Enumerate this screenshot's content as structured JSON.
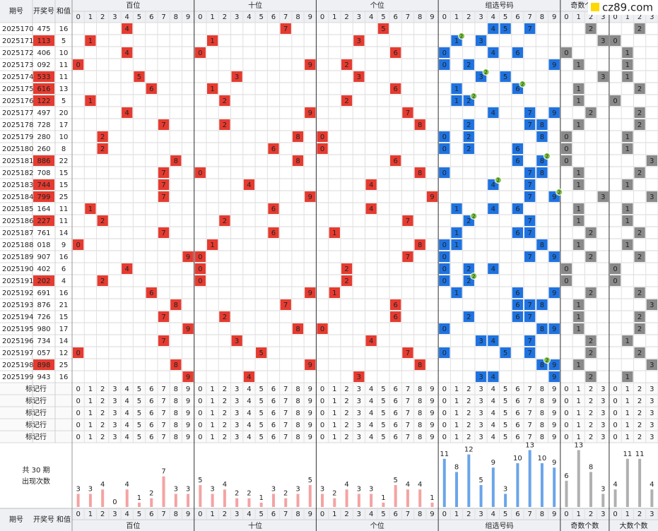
{
  "header": {
    "issue": "期号",
    "number": "开奖号",
    "sum": "和值",
    "groups": [
      "百位",
      "十位",
      "个位",
      "组选号码",
      "奇数个数",
      "大数个数"
    ],
    "digits10": [
      0,
      1,
      2,
      3,
      4,
      5,
      6,
      7,
      8,
      9
    ],
    "digits4": [
      0,
      1,
      2,
      3
    ]
  },
  "logo": "cz89.com",
  "rows": [
    {
      "issue": "2025170",
      "number": "475",
      "sum": 16,
      "digits": [
        4,
        7,
        5
      ],
      "group": [
        4,
        5,
        7
      ],
      "odd": 2,
      "big": 2
    },
    {
      "issue": "2025171",
      "number": "113",
      "sum": 5,
      "digits": [
        1,
        1,
        3
      ],
      "group": [
        1,
        3
      ],
      "pair": {
        "digit": 1,
        "count": 2
      },
      "odd": 3,
      "big": 0
    },
    {
      "issue": "2025172",
      "number": "406",
      "sum": 10,
      "digits": [
        4,
        0,
        6
      ],
      "group": [
        0,
        4,
        6
      ],
      "odd": 0,
      "big": 1
    },
    {
      "issue": "2025173",
      "number": "092",
      "sum": 11,
      "digits": [
        0,
        9,
        2
      ],
      "group": [
        0,
        2,
        9
      ],
      "odd": 1,
      "big": 1
    },
    {
      "issue": "2025174",
      "number": "533",
      "sum": 11,
      "digits": [
        5,
        3,
        3
      ],
      "group": [
        3,
        5
      ],
      "pair": {
        "digit": 3,
        "count": 2
      },
      "odd": 3,
      "big": 1
    },
    {
      "issue": "2025175",
      "number": "616",
      "sum": 13,
      "digits": [
        6,
        1,
        6
      ],
      "group": [
        1,
        6
      ],
      "pair": {
        "digit": 6,
        "count": 2
      },
      "odd": 1,
      "big": 2
    },
    {
      "issue": "2025176",
      "number": "122",
      "sum": 5,
      "digits": [
        1,
        2,
        2
      ],
      "group": [
        1,
        2
      ],
      "pair": {
        "digit": 2,
        "count": 2
      },
      "odd": 1,
      "big": 0
    },
    {
      "issue": "2025177",
      "number": "497",
      "sum": 20,
      "digits": [
        4,
        9,
        7
      ],
      "group": [
        4,
        7,
        9
      ],
      "odd": 2,
      "big": 2
    },
    {
      "issue": "2025178",
      "number": "728",
      "sum": 17,
      "digits": [
        7,
        2,
        8
      ],
      "group": [
        2,
        7,
        8
      ],
      "odd": 1,
      "big": 2
    },
    {
      "issue": "2025179",
      "number": "280",
      "sum": 10,
      "digits": [
        2,
        8,
        0
      ],
      "group": [
        0,
        2,
        8
      ],
      "odd": 0,
      "big": 1
    },
    {
      "issue": "2025180",
      "number": "260",
      "sum": 8,
      "digits": [
        2,
        6,
        0
      ],
      "group": [
        0,
        2,
        6
      ],
      "odd": 0,
      "big": 1
    },
    {
      "issue": "2025181",
      "number": "886",
      "sum": 22,
      "digits": [
        8,
        8,
        6
      ],
      "group": [
        6,
        8
      ],
      "pair": {
        "digit": 8,
        "count": 2
      },
      "odd": 0,
      "big": 3
    },
    {
      "issue": "2025182",
      "number": "708",
      "sum": 15,
      "digits": [
        7,
        0,
        8
      ],
      "group": [
        0,
        7,
        8
      ],
      "odd": 1,
      "big": 2
    },
    {
      "issue": "2025183",
      "number": "744",
      "sum": 15,
      "digits": [
        7,
        4,
        4
      ],
      "group": [
        4,
        7
      ],
      "pair": {
        "digit": 4,
        "count": 2
      },
      "odd": 1,
      "big": 1
    },
    {
      "issue": "2025184",
      "number": "799",
      "sum": 25,
      "digits": [
        7,
        9,
        9
      ],
      "group": [
        7,
        9
      ],
      "pair": {
        "digit": 9,
        "count": 2
      },
      "odd": 3,
      "big": 3
    },
    {
      "issue": "2025185",
      "number": "164",
      "sum": 11,
      "digits": [
        1,
        6,
        4
      ],
      "group": [
        1,
        4,
        6
      ],
      "odd": 1,
      "big": 1
    },
    {
      "issue": "2025186",
      "number": "227",
      "sum": 11,
      "digits": [
        2,
        2,
        7
      ],
      "group": [
        2,
        7
      ],
      "pair": {
        "digit": 2,
        "count": 2
      },
      "odd": 1,
      "big": 1
    },
    {
      "issue": "2025187",
      "number": "761",
      "sum": 14,
      "digits": [
        7,
        6,
        1
      ],
      "group": [
        1,
        6,
        7
      ],
      "odd": 2,
      "big": 2
    },
    {
      "issue": "2025188",
      "number": "018",
      "sum": 9,
      "digits": [
        0,
        1,
        8
      ],
      "group": [
        0,
        1,
        8
      ],
      "odd": 1,
      "big": 1
    },
    {
      "issue": "2025189",
      "number": "907",
      "sum": 16,
      "digits": [
        9,
        0,
        7
      ],
      "group": [
        0,
        7,
        9
      ],
      "odd": 2,
      "big": 2
    },
    {
      "issue": "2025190",
      "number": "402",
      "sum": 6,
      "digits": [
        4,
        0,
        2
      ],
      "group": [
        0,
        2,
        4
      ],
      "odd": 0,
      "big": 0
    },
    {
      "issue": "2025191",
      "number": "202",
      "sum": 4,
      "digits": [
        2,
        0,
        2
      ],
      "group": [
        0,
        2
      ],
      "pair": {
        "digit": 2,
        "count": 2
      },
      "odd": 0,
      "big": 0
    },
    {
      "issue": "2025192",
      "number": "691",
      "sum": 16,
      "digits": [
        6,
        9,
        1
      ],
      "group": [
        1,
        6,
        9
      ],
      "odd": 2,
      "big": 2
    },
    {
      "issue": "2025193",
      "number": "876",
      "sum": 21,
      "digits": [
        8,
        7,
        6
      ],
      "group": [
        6,
        7,
        8
      ],
      "odd": 1,
      "big": 3
    },
    {
      "issue": "2025194",
      "number": "726",
      "sum": 15,
      "digits": [
        7,
        2,
        6
      ],
      "group": [
        2,
        6,
        7
      ],
      "odd": 1,
      "big": 2
    },
    {
      "issue": "2025195",
      "number": "980",
      "sum": 17,
      "digits": [
        9,
        8,
        0
      ],
      "group": [
        0,
        8,
        9
      ],
      "odd": 1,
      "big": 2
    },
    {
      "issue": "2025196",
      "number": "734",
      "sum": 14,
      "digits": [
        7,
        3,
        4
      ],
      "group": [
        3,
        4,
        7
      ],
      "odd": 2,
      "big": 1
    },
    {
      "issue": "2025197",
      "number": "057",
      "sum": 12,
      "digits": [
        0,
        5,
        7
      ],
      "group": [
        0,
        5,
        7
      ],
      "odd": 2,
      "big": 2
    },
    {
      "issue": "2025198",
      "number": "898",
      "sum": 25,
      "digits": [
        8,
        9,
        8
      ],
      "group": [
        8,
        9
      ],
      "pair": {
        "digit": 8,
        "count": 2
      },
      "odd": 1,
      "big": 3
    },
    {
      "issue": "2025199",
      "number": "943",
      "sum": 16,
      "digits": [
        9,
        4,
        3
      ],
      "group": [
        3,
        4,
        9
      ],
      "odd": 2,
      "big": 1
    }
  ],
  "marker_rows": [
    "标记行",
    "标记行",
    "标记行",
    "标记行",
    "标记行"
  ],
  "stats": {
    "label_1": "共 30 期",
    "label_2": "出现次数",
    "hundreds": [
      3,
      3,
      4,
      0,
      4,
      1,
      2,
      7,
      3,
      3
    ],
    "tens": [
      5,
      3,
      4,
      2,
      2,
      1,
      3,
      2,
      3,
      5
    ],
    "units": [
      3,
      2,
      4,
      3,
      3,
      1,
      5,
      4,
      4,
      1
    ],
    "group": [
      11,
      8,
      12,
      5,
      9,
      3,
      10,
      13,
      10,
      9
    ],
    "odd": [
      6,
      13,
      8,
      3
    ],
    "big": [
      4,
      11,
      11,
      4
    ]
  }
}
